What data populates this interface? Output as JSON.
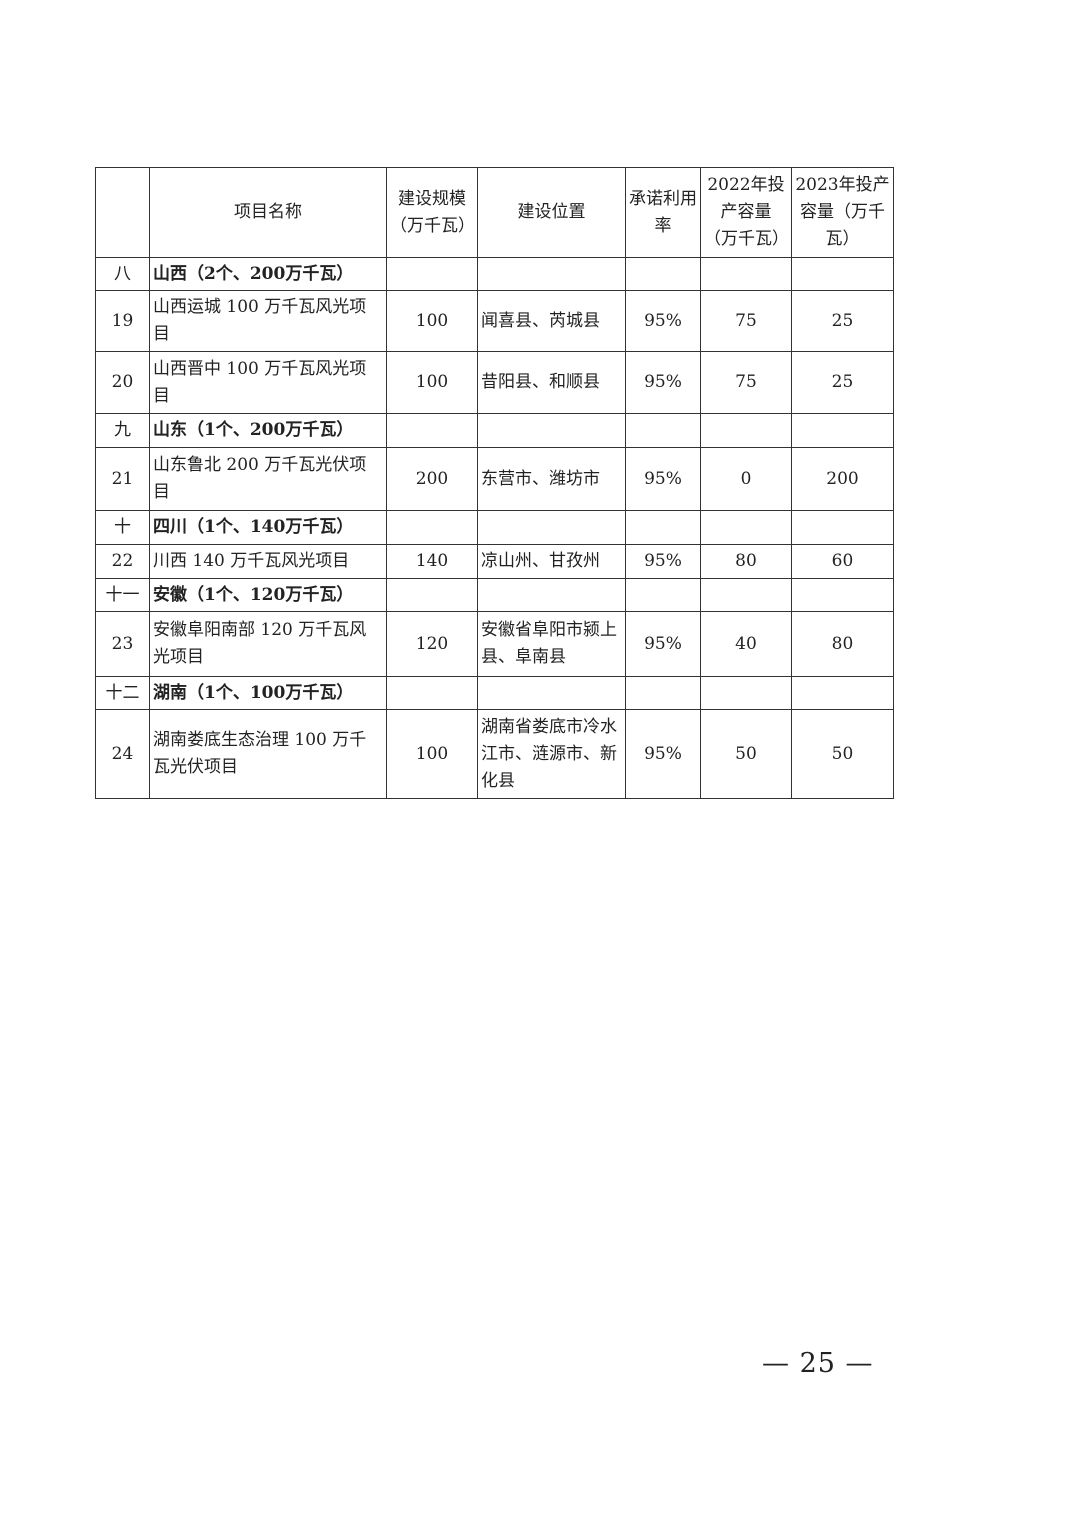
{
  "table": {
    "headers": [
      "",
      "项目名称",
      "建设规模（万千瓦）",
      "建设位置",
      "承诺利用率",
      "2022年投产容量（万千瓦）",
      "2023年投产容量（万千瓦）"
    ],
    "rows": [
      {
        "type": "section",
        "no": "八",
        "name": "山西（2个、200万千瓦）"
      },
      {
        "type": "item",
        "no": "19",
        "name": "山西运城 100 万千瓦风光项目",
        "scale": "100",
        "location": "闻喜县、芮城县",
        "rate": "95%",
        "cap2022": "75",
        "cap2023": "25"
      },
      {
        "type": "item",
        "no": "20",
        "name": "山西晋中 100 万千瓦风光项目",
        "scale": "100",
        "location": "昔阳县、和顺县",
        "rate": "95%",
        "cap2022": "75",
        "cap2023": "25"
      },
      {
        "type": "section",
        "no": "九",
        "name": "山东（1个、200万千瓦）"
      },
      {
        "type": "item",
        "no": "21",
        "name": "山东鲁北 200 万千瓦光伏项目",
        "scale": "200",
        "location": "东营市、潍坊市",
        "rate": "95%",
        "cap2022": "0",
        "cap2023": "200"
      },
      {
        "type": "section",
        "no": "十",
        "name": "四川（1个、140万千瓦）"
      },
      {
        "type": "item",
        "no": "22",
        "name": "川西 140 万千瓦风光项目",
        "scale": "140",
        "location": "凉山州、甘孜州",
        "rate": "95%",
        "cap2022": "80",
        "cap2023": "60"
      },
      {
        "type": "section",
        "no": "十一",
        "name": "安徽（1个、120万千瓦）"
      },
      {
        "type": "item",
        "no": "23",
        "name": "安徽阜阳南部 120 万千瓦风光项目",
        "scale": "120",
        "location": "安徽省阜阳市颍上县、阜南县",
        "rate": "95%",
        "cap2022": "40",
        "cap2023": "80"
      },
      {
        "type": "section",
        "no": "十二",
        "name": "湖南（1个、100万千瓦）"
      },
      {
        "type": "item",
        "no": "24",
        "name": "湖南娄底生态治理 100 万千瓦光伏项目",
        "scale": "100",
        "location": "湖南省娄底市冷水江市、涟源市、新化县",
        "rate": "95%",
        "cap2022": "50",
        "cap2023": "50"
      }
    ]
  },
  "page_number": "— 25 —"
}
